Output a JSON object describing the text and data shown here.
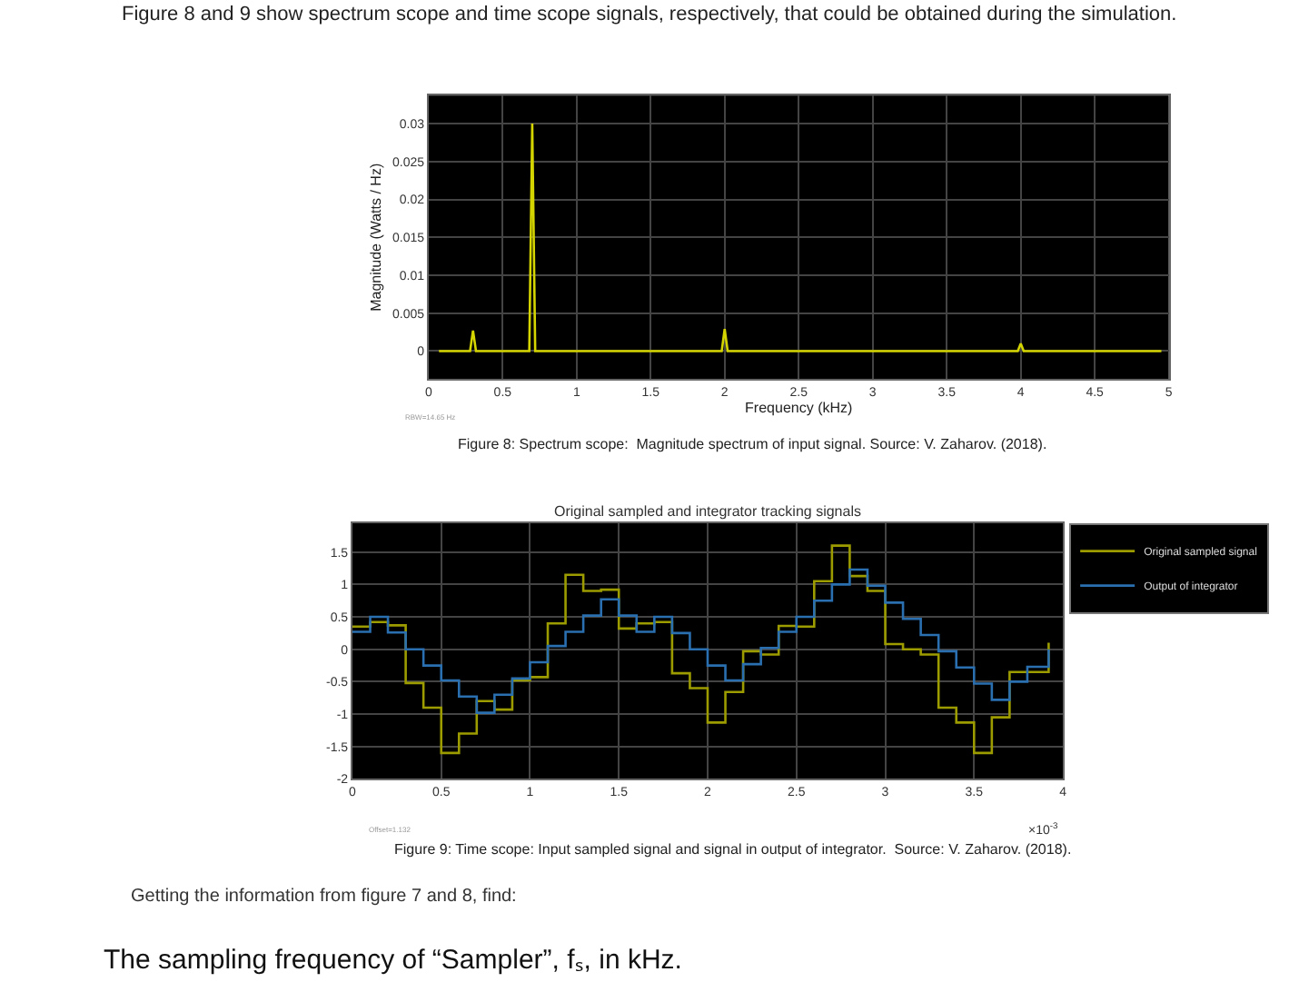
{
  "chart_data": [
    {
      "type": "line",
      "ylabel": "Magnitude (Watts / Hz)",
      "xlabel": "Frequency (kHz)",
      "x": [
        0.07,
        0.28,
        0.3,
        0.32,
        0.68,
        0.7,
        0.72,
        1.98,
        2.0,
        2.02,
        3.98,
        4.0,
        4.02,
        4.95
      ],
      "series": [
        {
          "color": "#d4d400",
          "values": [
            0,
            0,
            0.0027,
            0,
            0,
            0.03,
            0,
            0,
            0.0029,
            0,
            0,
            0.001,
            0,
            0
          ]
        }
      ],
      "xlim": [
        0,
        5
      ],
      "xticks": [
        0,
        0.5,
        1,
        1.5,
        2,
        2.5,
        3,
        3.5,
        4,
        4.5,
        5
      ],
      "ylim": [
        -0.0037,
        0.0337
      ],
      "yticks": [
        0,
        0.005,
        0.01,
        0.015,
        0.02,
        0.025,
        0.03
      ],
      "grid": true,
      "legend": false,
      "annotations": [
        "Figure 8 and 9 show spectrum scope and time scope signals, respectively, that could be obtained during the simulation.",
        "Figure 8: Spectrum scope:  Magnitude spectrum of input signal. Source: V. Zaharov. (2018).",
        "RBW=14.65 Hz"
      ]
    },
    {
      "type": "step",
      "title": "Original sampled and integrator tracking signals",
      "x": [
        0,
        0.1,
        0.2,
        0.3,
        0.4,
        0.5,
        0.6,
        0.7,
        0.8,
        0.9,
        1.0,
        1.1,
        1.2,
        1.3,
        1.4,
        1.5,
        1.6,
        1.7,
        1.8,
        1.9,
        2.0,
        2.1,
        2.2,
        2.3,
        2.4,
        2.5,
        2.6,
        2.7,
        2.8,
        2.9,
        3.0,
        3.1,
        3.2,
        3.3,
        3.4,
        3.5,
        3.6,
        3.7,
        3.8,
        3.9,
        3.92
      ],
      "series": [
        {
          "name": "Original sampled signal",
          "color": "#9c9c00",
          "values": [
            0.35,
            0.42,
            0.37,
            -0.52,
            -0.9,
            -1.6,
            -1.3,
            -0.8,
            -0.93,
            -0.48,
            -0.43,
            0.4,
            1.15,
            0.9,
            0.92,
            0.32,
            0.4,
            0.42,
            -0.37,
            -0.6,
            -1.13,
            -0.66,
            -0.03,
            -0.08,
            0.36,
            0.35,
            1.05,
            1.6,
            1.13,
            0.9,
            0.08,
            0.0,
            -0.08,
            -0.9,
            -1.13,
            -1.6,
            -1.05,
            -0.35,
            -0.35,
            -0.35,
            0.1
          ]
        },
        {
          "name": "Output of integrator",
          "color": "#2a6fb0",
          "values": [
            0.27,
            0.5,
            0.26,
            0.0,
            -0.25,
            -0.48,
            -0.73,
            -0.98,
            -0.7,
            -0.45,
            -0.2,
            0.05,
            0.27,
            0.52,
            0.77,
            0.52,
            0.27,
            0.5,
            0.25,
            0.0,
            -0.25,
            -0.48,
            -0.23,
            0.02,
            0.27,
            0.5,
            0.75,
            1.0,
            1.23,
            0.98,
            0.72,
            0.47,
            0.22,
            -0.03,
            -0.28,
            -0.53,
            -0.78,
            -0.5,
            -0.27,
            -0.27,
            0.0
          ]
        }
      ],
      "xlim": [
        0,
        4
      ],
      "xticks": [
        0,
        0.5,
        1,
        1.5,
        2,
        2.5,
        3,
        3.5,
        4
      ],
      "ylim": [
        -2,
        1.95
      ],
      "yticks": [
        -2,
        -1.5,
        -1,
        -0.5,
        0,
        0.5,
        1,
        1.5
      ],
      "grid": true,
      "legend": "right",
      "annotations": [
        "×10$^{-3}$",
        "Offset=1.132",
        "Figure 9: Time scope: Input sampled signal and signal in output of integrator.  Source: V. Zaharov. (2018).",
        "Getting the information from figure 7 and 8, find:",
        "The sampling frequency of “Sampler”, fₛ, in kHz."
      ]
    }
  ]
}
